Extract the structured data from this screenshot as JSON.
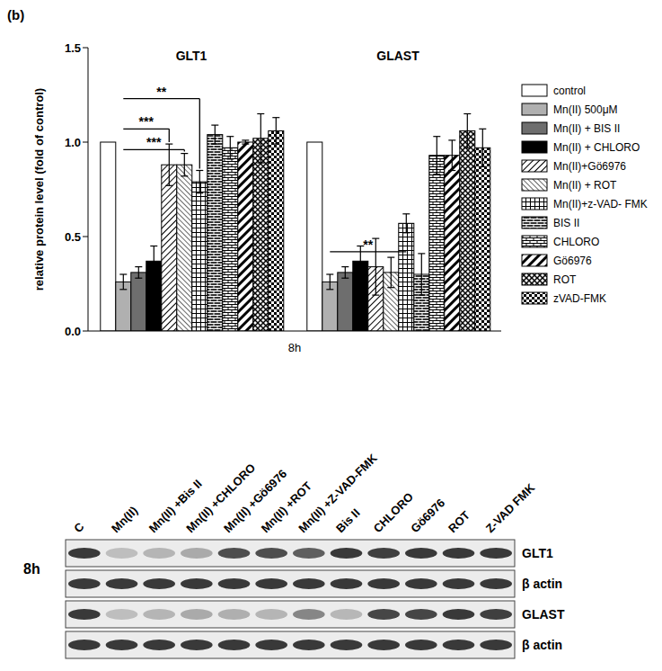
{
  "panel_label": "(b)",
  "chart_data": {
    "type": "bar",
    "x_label": "8h",
    "y_label": "relative protein level (fold of control)",
    "categories": [
      "GLT1",
      "GLAST"
    ],
    "series": [
      {
        "name": "control",
        "color": "#ffffff",
        "values": [
          1.0,
          1.0
        ],
        "errors": [
          0,
          0
        ]
      },
      {
        "name": "Mn(II) 500μM",
        "color": "#b0b0b0",
        "values": [
          0.26,
          0.26
        ],
        "errors": [
          0.04,
          0.04
        ]
      },
      {
        "name": "Mn(II) + BIS II",
        "color": "#6e6e6e",
        "values": [
          0.31,
          0.31
        ],
        "errors": [
          0.03,
          0.03
        ]
      },
      {
        "name": "Mn(II) + CHLORO",
        "color": "#000000",
        "values": [
          0.37,
          0.37
        ],
        "errors": [
          0.08,
          0.08
        ]
      },
      {
        "name": "Mn(II)+Gö6976",
        "color": "#000000",
        "values": [
          0.88,
          0.34
        ],
        "errors": [
          0.11,
          0.15
        ]
      },
      {
        "name": "Mn(II) + ROT",
        "color": "#000000",
        "values": [
          0.88,
          0.31
        ],
        "errors": [
          0.06,
          0.08
        ]
      },
      {
        "name": "Mn(II)+z-VAD- FMK",
        "color": "#000000",
        "values": [
          0.79,
          0.57
        ],
        "errors": [
          0.06,
          0.05
        ]
      },
      {
        "name": "BIS II",
        "color": "#000000",
        "values": [
          1.04,
          0.3
        ],
        "errors": [
          0.05,
          0.11
        ]
      },
      {
        "name": "CHLORO",
        "color": "#000000",
        "values": [
          0.97,
          0.93
        ],
        "errors": [
          0.06,
          0.1
        ]
      },
      {
        "name": "Gö6976",
        "color": "#000000",
        "values": [
          1.0,
          0.93
        ],
        "errors": [
          0.01,
          0.08
        ]
      },
      {
        "name": "ROT",
        "color": "#000000",
        "values": [
          1.02,
          1.06
        ],
        "errors": [
          0.13,
          0.09
        ]
      },
      {
        "name": "zVAD-FMK",
        "color": "#000000",
        "values": [
          1.06,
          0.97
        ],
        "errors": [
          0.07,
          0.1
        ]
      }
    ],
    "ylim": [
      0,
      1.5
    ],
    "yticks": [
      {
        "value": 0,
        "label": "0.0"
      },
      0.5,
      {
        "value": 1,
        "label": "1.0"
      },
      1.5
    ],
    "grid": false,
    "legend": "right",
    "annotations": [
      {
        "text": "**",
        "category": "GLT1",
        "from": "Mn(II) 500μM",
        "to": "Mn(II)+z-VAD- FMK",
        "y": 1.23
      },
      {
        "text": "***",
        "category": "GLT1",
        "from": "Mn(II) 500μM",
        "to": "Mn(II)+Gö6976",
        "y": 1.07
      },
      {
        "text": "***",
        "category": "GLT1",
        "from": "Mn(II) 500μM",
        "to": "Mn(II) + ROT",
        "y": 0.96
      },
      {
        "text": "**",
        "category": "GLAST",
        "from": "Mn(II) 500μM",
        "to": "Mn(II)+z-VAD- FMK",
        "y": 0.42
      }
    ]
  },
  "blot": {
    "time": "8h",
    "lanes": [
      "C",
      "Mn(II)",
      "Mn(II) +Bis II",
      "Mn(II) +CHLORO",
      "Mn(II) +Gö6976",
      "Mn(II) +ROT",
      "Mn(II) +Z-VAD-FMK",
      "Bis II",
      "CHLORO",
      "Gö6976",
      "ROT",
      "Z-VAD FMK"
    ],
    "rows": [
      "GLT1",
      "β actin",
      "GLAST",
      "β actin"
    ]
  }
}
